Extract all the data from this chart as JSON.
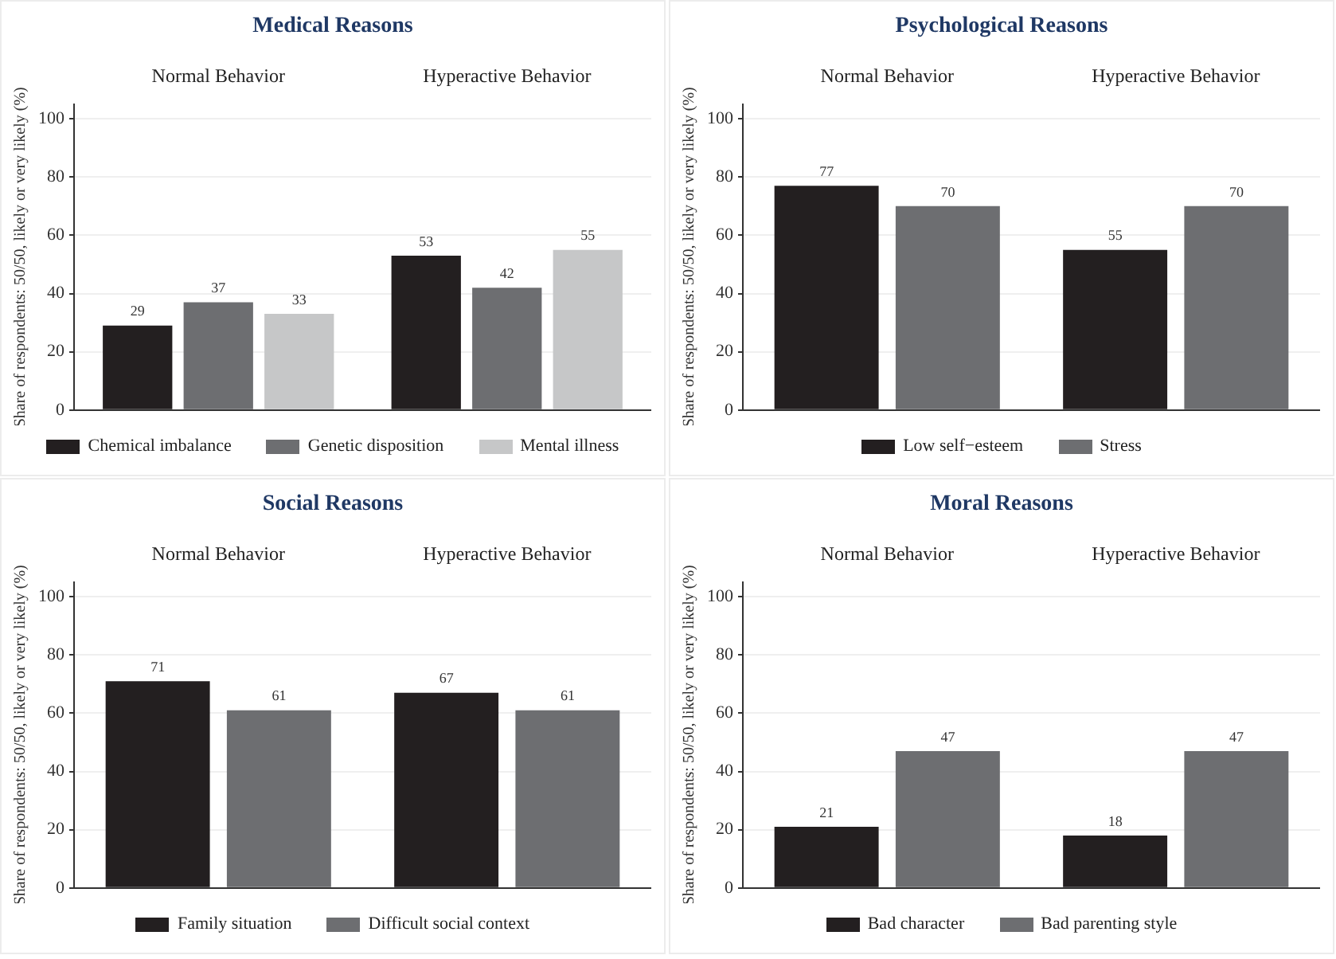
{
  "chart_data": [
    {
      "type": "bar",
      "title": "Medical Reasons",
      "ylabel": "Share of respondents: 50/50, likely or very likely (%)",
      "categories": [
        "Normal Behavior",
        "Hyperactive Behavior"
      ],
      "series": [
        {
          "name": "Chemical imbalance",
          "color": "#231f20",
          "values": [
            29,
            53
          ]
        },
        {
          "name": "Genetic disposition",
          "color": "#6d6e71",
          "values": [
            37,
            42
          ]
        },
        {
          "name": "Mental illness",
          "color": "#c6c7c8",
          "values": [
            33,
            55
          ]
        }
      ],
      "ylim": [
        0,
        105
      ],
      "yticks": [
        0,
        20,
        40,
        60,
        80,
        100
      ],
      "grid": "y",
      "legend": "bottom",
      "data_labels": true
    },
    {
      "type": "bar",
      "title": "Psychological Reasons",
      "ylabel": "Share of respondents: 50/50, likely or very likely (%)",
      "categories": [
        "Normal Behavior",
        "Hyperactive Behavior"
      ],
      "series": [
        {
          "name": "Low self−esteem",
          "color": "#231f20",
          "values": [
            77,
            55
          ]
        },
        {
          "name": "Stress",
          "color": "#6d6e71",
          "values": [
            70,
            70
          ]
        }
      ],
      "ylim": [
        0,
        105
      ],
      "yticks": [
        0,
        20,
        40,
        60,
        80,
        100
      ],
      "grid": "y",
      "legend": "bottom",
      "data_labels": true
    },
    {
      "type": "bar",
      "title": "Social Reasons",
      "ylabel": "Share of respondents: 50/50, likely or very likely (%)",
      "categories": [
        "Normal Behavior",
        "Hyperactive Behavior"
      ],
      "series": [
        {
          "name": "Family situation",
          "color": "#231f20",
          "values": [
            71,
            67
          ]
        },
        {
          "name": "Difficult social context",
          "color": "#6d6e71",
          "values": [
            61,
            61
          ]
        }
      ],
      "ylim": [
        0,
        105
      ],
      "yticks": [
        0,
        20,
        40,
        60,
        80,
        100
      ],
      "grid": "y",
      "legend": "bottom",
      "data_labels": true
    },
    {
      "type": "bar",
      "title": "Moral Reasons",
      "ylabel": "Share of respondents: 50/50, likely or very likely (%)",
      "categories": [
        "Normal Behavior",
        "Hyperactive Behavior"
      ],
      "series": [
        {
          "name": "Bad character",
          "color": "#231f20",
          "values": [
            21,
            18
          ]
        },
        {
          "name": "Bad parenting style",
          "color": "#6d6e71",
          "values": [
            47,
            47
          ]
        }
      ],
      "ylim": [
        0,
        105
      ],
      "yticks": [
        0,
        20,
        40,
        60,
        80,
        100
      ],
      "grid": "y",
      "legend": "bottom",
      "data_labels": true
    }
  ]
}
